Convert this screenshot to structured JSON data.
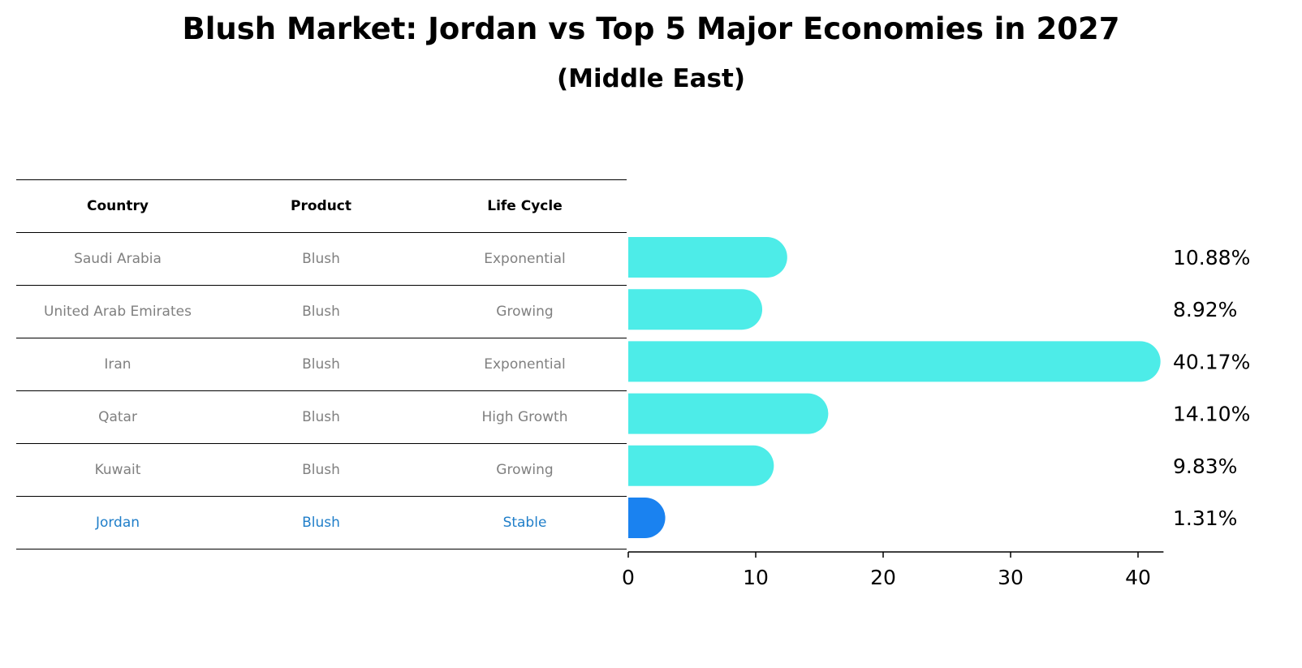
{
  "title": "Blush Market: Jordan vs Top 5 Major Economies in 2027",
  "subtitle": "(Middle East)",
  "table": {
    "headers": [
      "Country",
      "Product",
      "Life Cycle"
    ],
    "rows": [
      {
        "country": "Saudi Arabia",
        "product": "Blush",
        "life_cycle": "Exponential",
        "highlight": false
      },
      {
        "country": "United Arab Emirates",
        "product": "Blush",
        "life_cycle": "Growing",
        "highlight": false
      },
      {
        "country": "Iran",
        "product": "Blush",
        "life_cycle": "Exponential",
        "highlight": false
      },
      {
        "country": "Qatar",
        "product": "Blush",
        "life_cycle": "High Growth",
        "highlight": false
      },
      {
        "country": "Kuwait",
        "product": "Blush",
        "life_cycle": "Growing",
        "highlight": false
      },
      {
        "country": "Jordan",
        "product": "Blush",
        "life_cycle": "Stable",
        "highlight": true
      }
    ]
  },
  "colors": {
    "bar": "#4dece8",
    "highlight_bar": "#1a82f0",
    "highlight_text": "#1f7ec9",
    "row_text": "#808080"
  },
  "chart_data": {
    "type": "bar",
    "orientation": "horizontal",
    "categories": [
      "Saudi Arabia",
      "United Arab Emirates",
      "Iran",
      "Qatar",
      "Kuwait",
      "Jordan"
    ],
    "values": [
      10.88,
      8.92,
      40.17,
      14.1,
      9.83,
      1.31
    ],
    "value_labels": [
      "10.88%",
      "8.92%",
      "40.17%",
      "14.10%",
      "9.83%",
      "1.31%"
    ],
    "xlim": [
      0,
      42
    ],
    "xticks": [
      0,
      10,
      20,
      30,
      40
    ],
    "xlabel": "",
    "ylabel": "",
    "grid": false,
    "highlight_category": "Jordan"
  }
}
